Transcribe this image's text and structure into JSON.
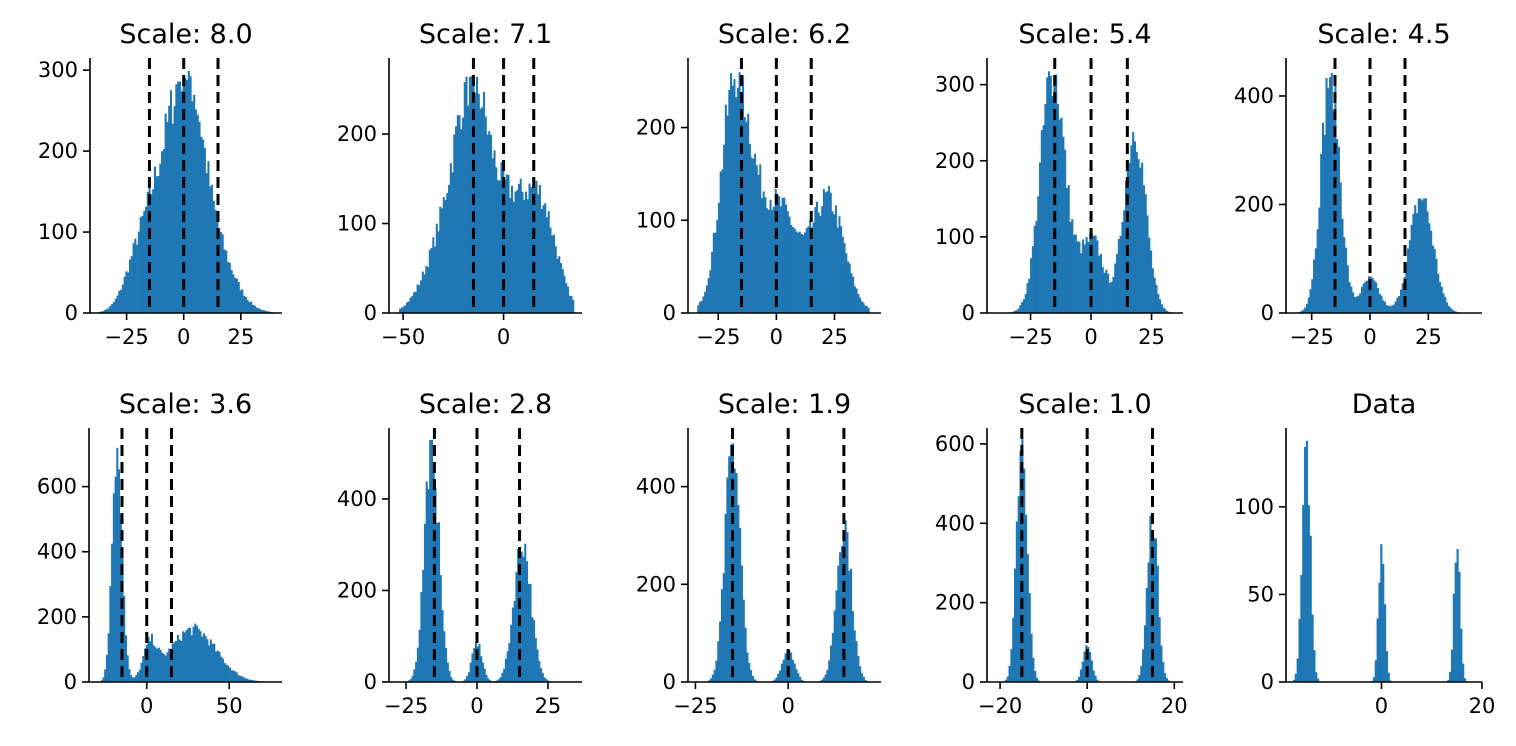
{
  "chart_data": [
    {
      "type": "bar",
      "title": "Scale: 8.0",
      "xlim": [
        -41,
        43
      ],
      "ylim": [
        0,
        315
      ],
      "xticks": [
        -25,
        0,
        25
      ],
      "xtick_labels": [
        "−25",
        "0",
        "25"
      ],
      "yticks": [
        0,
        100,
        200,
        300
      ],
      "ytick_labels": [
        "0",
        "100",
        "200",
        "300"
      ],
      "bar_color": "#1f77b4",
      "vlines": [
        -15,
        0,
        15
      ],
      "shape": {
        "range": [
          -38,
          40
        ],
        "peak": 300,
        "comps": [
          [
            -5,
            9,
            0.85
          ],
          [
            3,
            6,
            0.45
          ],
          [
            12,
            9,
            0.35
          ],
          [
            -20,
            6,
            0.2
          ]
        ],
        "amp": 300
      }
    },
    {
      "type": "bar",
      "title": "Scale: 7.1",
      "xlim": [
        -57,
        39
      ],
      "ylim": [
        0,
        285
      ],
      "xticks": [
        -50,
        0
      ],
      "xtick_labels": [
        "−50",
        "0"
      ],
      "yticks": [
        0,
        100,
        200
      ],
      "ytick_labels": [
        "0",
        "100",
        "200"
      ],
      "bar_color": "#1f77b4",
      "vlines": [
        -15,
        0,
        15
      ],
      "shape": {
        "range": [
          -52,
          35
        ],
        "peak": 265,
        "comps": [
          [
            -15,
            8,
            0.75
          ],
          [
            -28,
            10,
            0.3
          ],
          [
            2,
            8,
            0.35
          ],
          [
            18,
            8,
            0.42
          ]
        ],
        "amp": 265
      }
    },
    {
      "type": "bar",
      "title": "Scale: 6.2",
      "xlim": [
        -38,
        45
      ],
      "ylim": [
        0,
        275
      ],
      "xticks": [
        -25,
        0,
        25
      ],
      "xtick_labels": [
        "−25",
        "0",
        "25"
      ],
      "yticks": [
        0,
        100,
        200
      ],
      "ytick_labels": [
        "0",
        "100",
        "200"
      ],
      "bar_color": "#1f77b4",
      "vlines": [
        -15,
        0,
        15
      ],
      "shape": {
        "range": [
          -34,
          40
        ],
        "peak": 260,
        "comps": [
          [
            -18,
            6,
            0.85
          ],
          [
            -5,
            8,
            0.35
          ],
          [
            5,
            6,
            0.2
          ],
          [
            22,
            7,
            0.45
          ]
        ],
        "amp": 260
      }
    },
    {
      "type": "bar",
      "title": "Scale: 5.4",
      "xlim": [
        -43,
        38
      ],
      "ylim": [
        0,
        335
      ],
      "xticks": [
        -25,
        0,
        25
      ],
      "xtick_labels": [
        "−25",
        "0",
        "25"
      ],
      "yticks": [
        0,
        100,
        200,
        300
      ],
      "ytick_labels": [
        "0",
        "100",
        "200",
        "300"
      ],
      "bar_color": "#1f77b4",
      "vlines": [
        -15,
        0,
        15
      ],
      "shape": {
        "range": [
          -40,
          34
        ],
        "peak": 320,
        "comps": [
          [
            -16,
            5,
            0.95
          ],
          [
            -3,
            5,
            0.15
          ],
          [
            2,
            4,
            0.18
          ],
          [
            18,
            4.5,
            0.72
          ]
        ],
        "amp": 320
      }
    },
    {
      "type": "bar",
      "title": "Scale: 4.5",
      "xlim": [
        -36,
        48
      ],
      "ylim": [
        0,
        470
      ],
      "xticks": [
        -25,
        0,
        25
      ],
      "xtick_labels": [
        "−25",
        "0",
        "25"
      ],
      "yticks": [
        0,
        200,
        400
      ],
      "ytick_labels": [
        "0",
        "200",
        "400"
      ],
      "bar_color": "#1f77b4",
      "vlines": [
        -15,
        0,
        15
      ],
      "shape": {
        "range": [
          -32,
          44
        ],
        "peak": 445,
        "comps": [
          [
            -17,
            4,
            1.0
          ],
          [
            0,
            4,
            0.14
          ],
          [
            22,
            5,
            0.48
          ]
        ],
        "amp": 445
      }
    },
    {
      "type": "bar",
      "title": "Scale: 3.6",
      "xlim": [
        -35,
        82
      ],
      "ylim": [
        0,
        780
      ],
      "xticks": [
        0,
        50
      ],
      "xtick_labels": [
        "0",
        "50"
      ],
      "yticks": [
        0,
        200,
        400,
        600
      ],
      "ytick_labels": [
        "0",
        "200",
        "400",
        "600"
      ],
      "bar_color": "#1f77b4",
      "vlines": [
        -15,
        0,
        15
      ],
      "shape": {
        "range": [
          -30,
          75
        ],
        "peak": 735,
        "comps": [
          [
            -18,
            3,
            1.0
          ],
          [
            2,
            4,
            0.14
          ],
          [
            28,
            14,
            0.22
          ]
        ],
        "amp": 735
      }
    },
    {
      "type": "bar",
      "title": "Scale: 2.8",
      "xlim": [
        -31,
        37
      ],
      "ylim": [
        0,
        555
      ],
      "xticks": [
        -25,
        0,
        25
      ],
      "xtick_labels": [
        "−25",
        "0",
        "25"
      ],
      "yticks": [
        0,
        200,
        400
      ],
      "ytick_labels": [
        "0",
        "200",
        "400"
      ],
      "bar_color": "#1f77b4",
      "vlines": [
        -15,
        0,
        15
      ],
      "shape": {
        "range": [
          -28,
          34
        ],
        "peak": 530,
        "comps": [
          [
            -16,
            2.5,
            1.0
          ],
          [
            0,
            1.8,
            0.16
          ],
          [
            16,
            3,
            0.58
          ]
        ],
        "amp": 530
      }
    },
    {
      "type": "bar",
      "title": "Scale: 1.9",
      "xlim": [
        -27,
        25
      ],
      "ylim": [
        0,
        520
      ],
      "xticks": [
        -25,
        0
      ],
      "xtick_labels": [
        "−25",
        "0"
      ],
      "yticks": [
        0,
        200,
        400
      ],
      "ytick_labels": [
        "0",
        "200",
        "400"
      ],
      "bar_color": "#1f77b4",
      "vlines": [
        -15,
        0,
        15
      ],
      "shape": {
        "range": [
          -25,
          24
        ],
        "peak": 490,
        "comps": [
          [
            -15,
            2,
            1.0
          ],
          [
            0,
            1.6,
            0.14
          ],
          [
            15,
            2,
            0.67
          ]
        ],
        "amp": 490
      }
    },
    {
      "type": "bar",
      "title": "Scale: 1.0",
      "xlim": [
        -23,
        22
      ],
      "ylim": [
        0,
        640
      ],
      "xticks": [
        -20,
        0,
        20
      ],
      "xtick_labels": [
        "−20",
        "0",
        "20"
      ],
      "yticks": [
        0,
        200,
        400,
        600
      ],
      "ytick_labels": [
        "0",
        "200",
        "400",
        "600"
      ],
      "bar_color": "#1f77b4",
      "vlines": [
        -15,
        0,
        15
      ],
      "shape": {
        "range": [
          -21,
          21
        ],
        "peak": 620,
        "comps": [
          [
            -15,
            1.2,
            1.0
          ],
          [
            0,
            1.0,
            0.14
          ],
          [
            15,
            1.2,
            0.68
          ]
        ],
        "amp": 620
      }
    },
    {
      "type": "bar",
      "title": "Data",
      "xlim": [
        -19,
        20
      ],
      "ylim": [
        0,
        145
      ],
      "xticks": [
        0,
        20
      ],
      "xtick_labels": [
        "0",
        "20"
      ],
      "yticks": [
        0,
        50,
        100
      ],
      "ytick_labels": [
        "0",
        "50",
        "100"
      ],
      "bar_color": "#1f77b4",
      "vlines": [],
      "shape": {
        "range": [
          -18,
          19
        ],
        "peak": 138,
        "comps": [
          [
            -15,
            0.8,
            1.0
          ],
          [
            0,
            0.6,
            0.57
          ],
          [
            15,
            0.6,
            0.57
          ]
        ],
        "amp": 138
      }
    }
  ]
}
